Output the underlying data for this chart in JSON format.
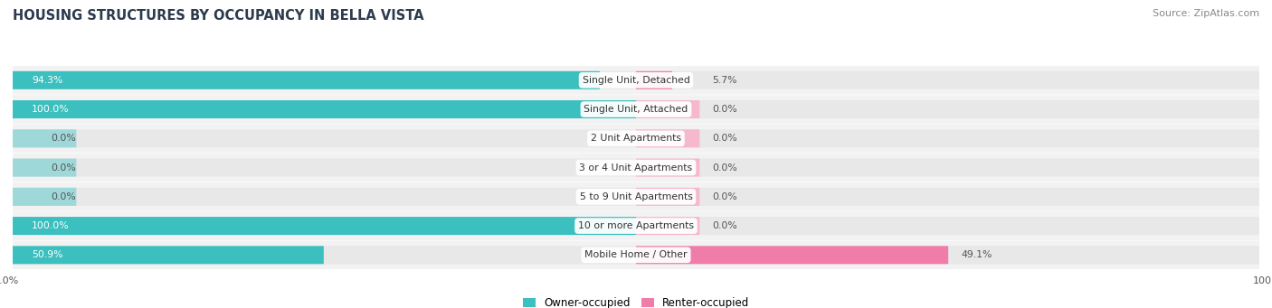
{
  "title": "HOUSING STRUCTURES BY OCCUPANCY IN BELLA VISTA",
  "source": "Source: ZipAtlas.com",
  "categories": [
    "Single Unit, Detached",
    "Single Unit, Attached",
    "2 Unit Apartments",
    "3 or 4 Unit Apartments",
    "5 to 9 Unit Apartments",
    "10 or more Apartments",
    "Mobile Home / Other"
  ],
  "owner_pct": [
    94.3,
    100.0,
    0.0,
    0.0,
    0.0,
    100.0,
    50.9
  ],
  "renter_pct": [
    5.7,
    0.0,
    0.0,
    0.0,
    0.0,
    0.0,
    49.1
  ],
  "owner_color": "#3bbfbf",
  "renter_color": "#f07caa",
  "owner_color_light": "#9fd8d8",
  "renter_color_light": "#f5b8cc",
  "bg_color": "#ffffff",
  "bar_bg_color": "#e8e8e8",
  "row_bg_color": "#f2f2f2",
  "title_color": "#2d3b4e",
  "label_color": "#444444",
  "pct_color_dark": "#555555",
  "white_text": "#ffffff"
}
